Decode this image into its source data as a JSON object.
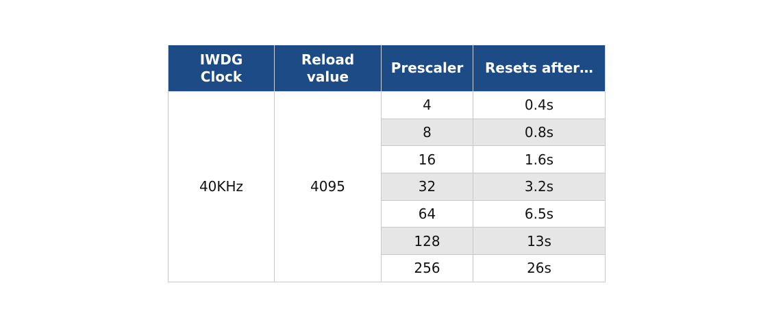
{
  "table": {
    "headers": [
      "IWDG\nClock",
      "Reload\nvalue",
      "Prescaler",
      "Resets after…"
    ],
    "header_lines": [
      [
        "IWDG",
        "Clock"
      ],
      [
        "Reload",
        "value"
      ],
      [
        "Prescaler"
      ],
      [
        "Resets after…"
      ]
    ],
    "clock": "40KHz",
    "reload": "4095",
    "rows": [
      {
        "prescaler": "4",
        "resets_after": "0.4s"
      },
      {
        "prescaler": "8",
        "resets_after": "0.8s"
      },
      {
        "prescaler": "16",
        "resets_after": "1.6s"
      },
      {
        "prescaler": "32",
        "resets_after": "3.2s"
      },
      {
        "prescaler": "64",
        "resets_after": "6.5s"
      },
      {
        "prescaler": "128",
        "resets_after": "13s"
      },
      {
        "prescaler": "256",
        "resets_after": "26s"
      }
    ]
  },
  "colors": {
    "header_bg": "#1c4b86",
    "header_text": "#ffffff",
    "shaded_row": "#e6e6e6",
    "border": "#c8c8c8"
  }
}
